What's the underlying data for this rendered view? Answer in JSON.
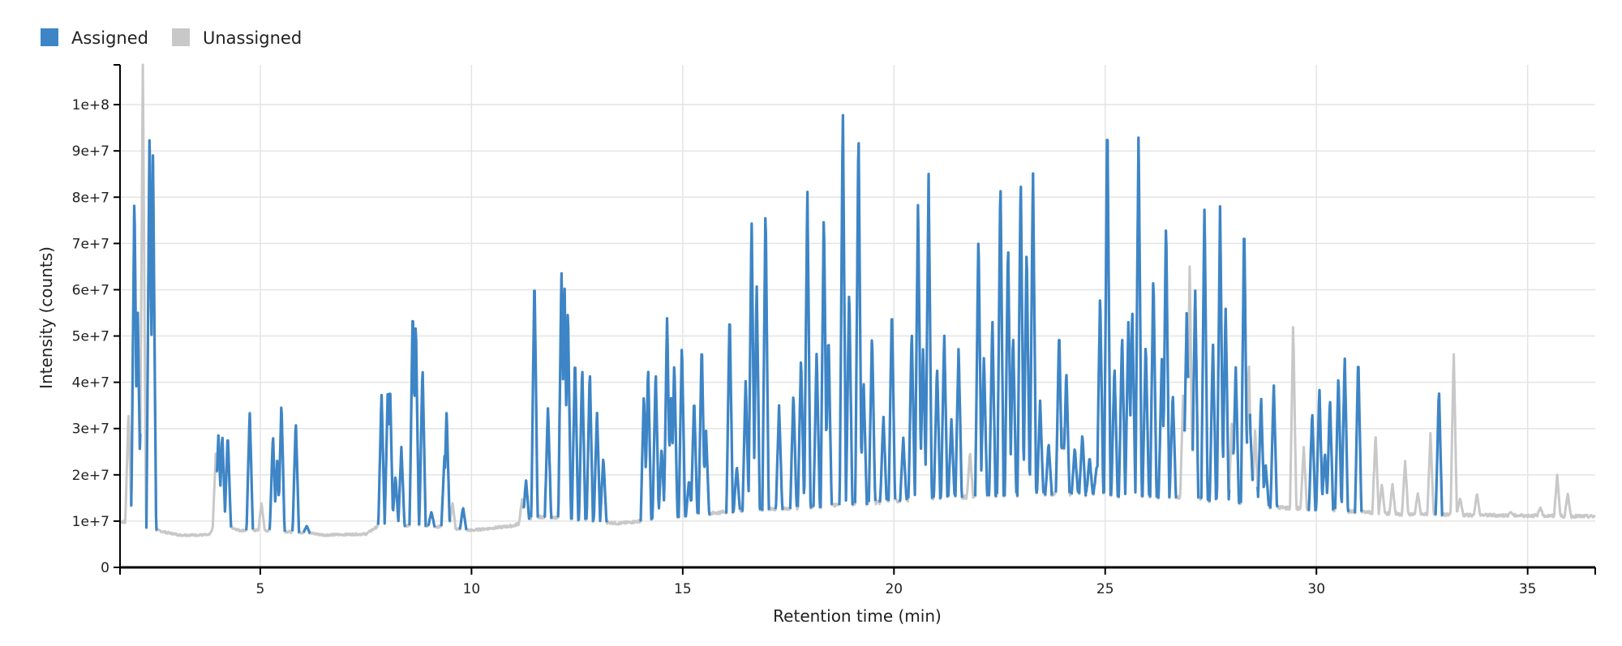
{
  "legend": {
    "items": [
      {
        "label": "Assigned",
        "color": "#3d85c6"
      },
      {
        "label": "Unassigned",
        "color": "#c8c8c8"
      }
    ]
  },
  "chart_data": {
    "type": "line",
    "xlabel": "Retention time (min)",
    "ylabel": "Intensity (counts)",
    "xlim": [
      1.68,
      36.6
    ],
    "ylim": [
      0,
      108600000
    ],
    "xticks": [
      5,
      10,
      15,
      20,
      25,
      30,
      35
    ],
    "yticks": [
      0,
      10000000,
      20000000,
      30000000,
      40000000,
      50000000,
      60000000,
      70000000,
      80000000,
      90000000,
      100000000
    ],
    "ytick_labels": [
      "0",
      "1e+7",
      "2e+7",
      "3e+7",
      "4e+7",
      "5e+7",
      "6e+7",
      "7e+7",
      "8e+7",
      "9e+7",
      "1e+8"
    ],
    "grid": true,
    "legend_position": "top-left",
    "series": [
      {
        "name": "Assigned",
        "color": "#3d85c6",
        "peaks": [
          [
            2.02,
            82000000.0
          ],
          [
            2.1,
            55000000.0
          ],
          [
            2.38,
            97000000.0
          ],
          [
            2.46,
            89000000.0
          ],
          [
            4.01,
            29000000.0
          ],
          [
            4.1,
            29000000.0
          ],
          [
            4.23,
            29000000.0
          ],
          [
            4.75,
            34000000.0
          ],
          [
            5.3,
            29000000.0
          ],
          [
            5.4,
            23000000.0
          ],
          [
            5.5,
            36000000.0
          ],
          [
            5.84,
            32000000.0
          ],
          [
            6.1,
            9000000.0
          ],
          [
            7.87,
            38000000.0
          ],
          [
            8.02,
            39000000.0
          ],
          [
            8.07,
            40000000.0
          ],
          [
            8.2,
            20000000.0
          ],
          [
            8.34,
            26000000.0
          ],
          [
            8.61,
            57000000.0
          ],
          [
            8.68,
            54000000.0
          ],
          [
            8.84,
            44000000.0
          ],
          [
            9.05,
            12000000.0
          ],
          [
            9.36,
            24000000.0
          ],
          [
            9.41,
            34000000.0
          ],
          [
            9.8,
            13000000.0
          ],
          [
            11.29,
            19000000.0
          ],
          [
            11.49,
            64000000.0
          ],
          [
            11.81,
            35000000.0
          ],
          [
            12.13,
            65000000.0
          ],
          [
            12.2,
            63000000.0
          ],
          [
            12.28,
            57000000.0
          ],
          [
            12.45,
            46000000.0
          ],
          [
            12.62,
            44000000.0
          ],
          [
            12.8,
            43000000.0
          ],
          [
            12.97,
            34000000.0
          ],
          [
            13.12,
            24000000.0
          ],
          [
            14.08,
            38000000.0
          ],
          [
            14.18,
            44000000.0
          ],
          [
            14.36,
            43000000.0
          ],
          [
            14.5,
            26000000.0
          ],
          [
            14.63,
            55000000.0
          ],
          [
            14.72,
            38000000.0
          ],
          [
            14.8,
            45000000.0
          ],
          [
            14.98,
            49000000.0
          ],
          [
            15.15,
            19000000.0
          ],
          [
            15.27,
            37000000.0
          ],
          [
            15.45,
            49000000.0
          ],
          [
            15.55,
            30000000.0
          ],
          [
            16.11,
            56000000.0
          ],
          [
            16.28,
            22000000.0
          ],
          [
            16.49,
            41000000.0
          ],
          [
            16.63,
            76000000.0
          ],
          [
            16.75,
            62000000.0
          ],
          [
            16.96,
            79000000.0
          ],
          [
            17.28,
            35000000.0
          ],
          [
            17.62,
            38000000.0
          ],
          [
            17.8,
            46000000.0
          ],
          [
            17.95,
            83000000.0
          ],
          [
            18.17,
            47000000.0
          ],
          [
            18.34,
            78000000.0
          ],
          [
            18.45,
            51000000.0
          ],
          [
            18.79,
            100000000.0
          ],
          [
            18.94,
            61000000.0
          ],
          [
            19.16,
            96000000.0
          ],
          [
            19.28,
            41000000.0
          ],
          [
            19.48,
            51000000.0
          ],
          [
            19.75,
            33000000.0
          ],
          [
            19.95,
            57000000.0
          ],
          [
            20.22,
            28000000.0
          ],
          [
            20.42,
            52000000.0
          ],
          [
            20.57,
            80000000.0
          ],
          [
            20.69,
            48000000.0
          ],
          [
            20.82,
            85000000.0
          ],
          [
            21.02,
            44000000.0
          ],
          [
            21.19,
            51000000.0
          ],
          [
            21.36,
            32000000.0
          ],
          [
            21.53,
            48000000.0
          ],
          [
            22.0,
            73000000.0
          ],
          [
            22.13,
            46000000.0
          ],
          [
            22.33,
            54000000.0
          ],
          [
            22.52,
            85000000.0
          ],
          [
            22.7,
            71000000.0
          ],
          [
            22.82,
            51000000.0
          ],
          [
            23.0,
            86000000.0
          ],
          [
            23.14,
            70000000.0
          ],
          [
            23.29,
            87000000.0
          ],
          [
            23.46,
            36000000.0
          ],
          [
            23.66,
            27000000.0
          ],
          [
            23.91,
            52000000.0
          ],
          [
            24.08,
            43000000.0
          ],
          [
            24.28,
            26000000.0
          ],
          [
            24.46,
            29000000.0
          ],
          [
            24.63,
            24000000.0
          ],
          [
            24.8,
            22000000.0
          ],
          [
            24.88,
            60000000.0
          ],
          [
            25.05,
            99000000.0
          ],
          [
            25.22,
            44000000.0
          ],
          [
            25.4,
            51000000.0
          ],
          [
            25.55,
            54000000.0
          ],
          [
            25.64,
            57000000.0
          ],
          [
            25.79,
            95000000.0
          ],
          [
            25.96,
            49000000.0
          ],
          [
            26.14,
            64000000.0
          ],
          [
            26.34,
            45000000.0
          ],
          [
            26.44,
            76000000.0
          ],
          [
            26.6,
            38000000.0
          ],
          [
            26.93,
            56000000.0
          ],
          [
            27.13,
            61000000.0
          ],
          [
            27.35,
            79000000.0
          ],
          [
            27.55,
            49000000.0
          ],
          [
            27.72,
            78000000.0
          ],
          [
            27.85,
            57000000.0
          ],
          [
            28.09,
            44000000.0
          ],
          [
            28.29,
            76000000.0
          ],
          [
            28.44,
            29000000.0
          ],
          [
            28.69,
            37000000.0
          ],
          [
            28.8,
            22000000.0
          ],
          [
            28.99,
            40000000.0
          ],
          [
            29.9,
            34000000.0
          ],
          [
            30.07,
            39000000.0
          ],
          [
            30.2,
            25000000.0
          ],
          [
            30.32,
            37000000.0
          ],
          [
            30.52,
            42000000.0
          ],
          [
            30.67,
            46000000.0
          ],
          [
            30.99,
            46000000.0
          ],
          [
            32.9,
            39000000.0
          ]
        ]
      },
      {
        "name": "Unassigned",
        "color": "#c8c8c8",
        "peaks": [
          [
            1.88,
            34000000.0
          ],
          [
            2.22,
            109000000.0
          ],
          [
            3.95,
            25000000.0
          ],
          [
            5.03,
            14000000.0
          ],
          [
            9.55,
            14000000.0
          ],
          [
            11.2,
            15000000.0
          ],
          [
            21.8,
            25000000.0
          ],
          [
            24.0,
            30000000.0
          ],
          [
            26.85,
            39000000.0
          ],
          [
            27.0,
            65000000.0
          ],
          [
            28.0,
            32000000.0
          ],
          [
            28.4,
            45000000.0
          ],
          [
            28.55,
            30000000.0
          ],
          [
            29.45,
            53000000.0
          ],
          [
            29.7,
            26000000.0
          ],
          [
            31.4,
            29000000.0
          ],
          [
            31.55,
            18000000.0
          ],
          [
            31.8,
            18000000.0
          ],
          [
            32.1,
            23000000.0
          ],
          [
            32.4,
            16000000.0
          ],
          [
            32.7,
            29000000.0
          ],
          [
            33.25,
            47000000.0
          ],
          [
            33.4,
            15000000.0
          ],
          [
            33.8,
            16000000.0
          ],
          [
            34.6,
            12000000.0
          ],
          [
            35.3,
            13000000.0
          ],
          [
            35.7,
            20000000.0
          ],
          [
            35.95,
            16000000.0
          ]
        ],
        "baseline": [
          [
            1.68,
            10000000.0
          ],
          [
            2.8,
            7500000.0
          ],
          [
            3.1,
            7000000.0
          ],
          [
            3.8,
            7000000.0
          ],
          [
            3.95,
            10000000.0
          ],
          [
            4.5,
            8000000.0
          ],
          [
            5.0,
            8000000.0
          ],
          [
            6.1,
            7500000.0
          ],
          [
            6.5,
            7000000.0
          ],
          [
            7.5,
            7200000.0
          ],
          [
            7.8,
            9000000.0
          ],
          [
            9.0,
            9000000.0
          ],
          [
            10.0,
            8000000.0
          ],
          [
            10.5,
            8500000.0
          ],
          [
            11.0,
            9000000.0
          ],
          [
            11.5,
            11000000.0
          ],
          [
            13.5,
            9500000.0
          ],
          [
            14.0,
            10000000.0
          ],
          [
            16.0,
            12000000.0
          ],
          [
            18.0,
            13000000.0
          ],
          [
            21.0,
            15000000.0
          ],
          [
            24.0,
            16000000.0
          ],
          [
            27.0,
            15000000.0
          ],
          [
            29.0,
            13000000.0
          ],
          [
            31.0,
            12000000.0
          ],
          [
            32.0,
            11500000.0
          ],
          [
            36.6,
            11000000.0
          ]
        ]
      }
    ]
  }
}
